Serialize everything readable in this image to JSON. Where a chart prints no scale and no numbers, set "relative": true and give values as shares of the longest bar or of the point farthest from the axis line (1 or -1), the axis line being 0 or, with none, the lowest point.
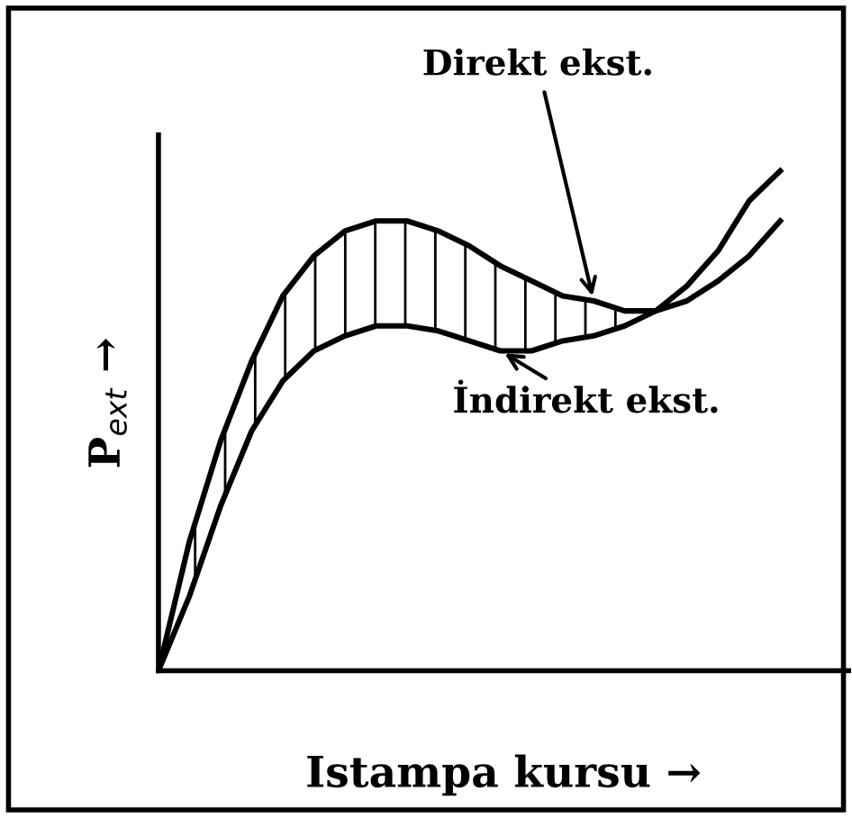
{
  "chart_data": {
    "type": "line",
    "relative": true,
    "xlabel": "Istampa kursu →",
    "ylabel": "P$_{ext}$ →",
    "categories": [
      null,
      null,
      null,
      null,
      null,
      null,
      null,
      null,
      null,
      null,
      null,
      null,
      null,
      null,
      null,
      null,
      null,
      null,
      null,
      null,
      null
    ],
    "series": [
      {
        "name": "Direkt ekst.",
        "color": "#000000",
        "values": [
          0,
          0.26,
          0.46,
          0.62,
          0.75,
          0.83,
          0.88,
          0.9,
          0.9,
          0.88,
          0.85,
          0.81,
          0.78,
          0.75,
          0.74,
          0.72,
          0.72,
          0.74,
          0.78,
          0.83,
          0.9
        ],
        "lower": [
          0,
          0.15,
          0.33,
          0.48,
          0.58,
          0.64,
          0.67,
          0.69,
          0.69,
          0.68,
          0.66,
          0.64,
          0.64,
          0.66,
          0.67,
          0.69,
          0.72,
          null,
          null,
          null,
          null
        ],
        "upper": [
          0,
          0.26,
          0.46,
          0.62,
          0.75,
          0.83,
          0.88,
          0.9,
          0.9,
          0.88,
          0.85,
          0.81,
          0.78,
          0.75,
          0.74,
          0.72,
          0.72,
          null,
          null,
          null,
          null
        ]
      },
      {
        "name": "İndirekt ekst.",
        "color": "#000000",
        "values": [
          0,
          0.15,
          0.33,
          0.48,
          0.58,
          0.64,
          0.67,
          0.69,
          0.69,
          0.68,
          0.66,
          0.64,
          0.64,
          0.66,
          0.67,
          0.69,
          0.72,
          0.77,
          0.84,
          0.94,
          1.0
        ]
      }
    ],
    "marker": "none",
    "line_style": "solid",
    "grid": false
  }
}
